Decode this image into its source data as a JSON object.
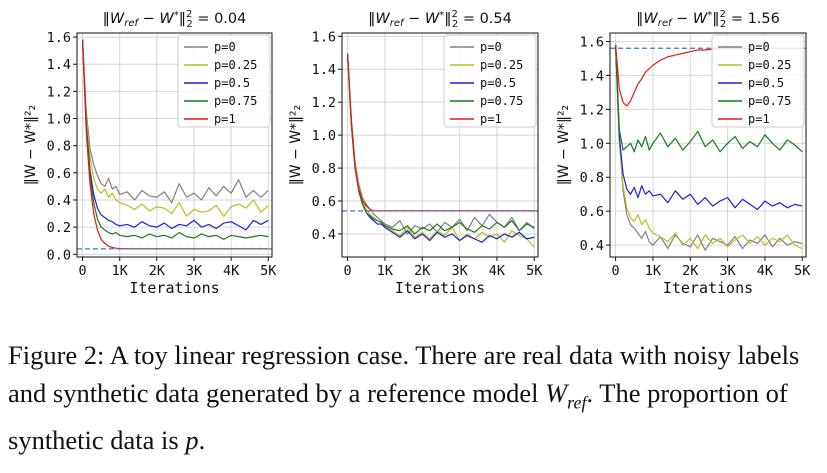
{
  "chart_data": [
    {
      "type": "line",
      "title": "‖W_ref − W*‖²₂ = 0.04",
      "title_parts": {
        "norm": "‖W",
        "sub": "ref",
        "mid": " − W",
        "sup": "*",
        "close": "‖",
        "pow": "2",
        "powsub": "2",
        "value": " = 0.04"
      },
      "xlabel": "Iterations",
      "ylabel": "‖W − W*‖²₂",
      "xlim": [
        -150,
        5100
      ],
      "ylim": [
        -0.02,
        1.63
      ],
      "xticks": [
        0,
        1000,
        2000,
        3000,
        4000,
        5000
      ],
      "xtick_labels": [
        "0",
        "1K",
        "2K",
        "3K",
        "4K",
        "5K"
      ],
      "yticks": [
        0.0,
        0.2,
        0.4,
        0.6,
        0.8,
        1.0,
        1.2,
        1.4,
        1.6
      ],
      "ytick_labels": [
        "0.0",
        "0.2",
        "0.4",
        "0.6",
        "0.8",
        "1.0",
        "1.2",
        "1.4",
        "1.6"
      ],
      "hline": 0.04,
      "grid": true,
      "legend": "top-right",
      "x": [
        0,
        100,
        200,
        300,
        400,
        500,
        600,
        700,
        800,
        900,
        1000,
        1200,
        1400,
        1600,
        1800,
        2000,
        2200,
        2400,
        2600,
        2800,
        3000,
        3200,
        3400,
        3600,
        3800,
        4000,
        4200,
        4400,
        4600,
        4800,
        5000
      ],
      "series": [
        {
          "name": "p=0",
          "color": "#808080",
          "values": [
            1.58,
            1.05,
            0.78,
            0.66,
            0.58,
            0.52,
            0.5,
            0.56,
            0.48,
            0.5,
            0.44,
            0.46,
            0.4,
            0.47,
            0.43,
            0.42,
            0.46,
            0.38,
            0.52,
            0.42,
            0.45,
            0.4,
            0.49,
            0.43,
            0.5,
            0.45,
            0.55,
            0.42,
            0.47,
            0.42,
            0.47
          ]
        },
        {
          "name": "p=0.25",
          "color": "#bcbd22",
          "values": [
            1.58,
            1.0,
            0.72,
            0.56,
            0.48,
            0.45,
            0.48,
            0.42,
            0.45,
            0.4,
            0.38,
            0.36,
            0.33,
            0.37,
            0.32,
            0.35,
            0.34,
            0.3,
            0.38,
            0.28,
            0.33,
            0.31,
            0.32,
            0.36,
            0.28,
            0.35,
            0.37,
            0.34,
            0.4,
            0.31,
            0.36
          ]
        },
        {
          "name": "p=0.5",
          "color": "#1f1fd4",
          "values": [
            1.58,
            0.95,
            0.62,
            0.44,
            0.34,
            0.29,
            0.27,
            0.25,
            0.24,
            0.22,
            0.21,
            0.22,
            0.2,
            0.24,
            0.21,
            0.2,
            0.23,
            0.19,
            0.22,
            0.21,
            0.25,
            0.2,
            0.22,
            0.19,
            0.23,
            0.24,
            0.21,
            0.18,
            0.25,
            0.22,
            0.25
          ]
        },
        {
          "name": "p=0.75",
          "color": "#1a7a1a",
          "values": [
            1.58,
            0.93,
            0.58,
            0.38,
            0.26,
            0.2,
            0.18,
            0.16,
            0.15,
            0.16,
            0.14,
            0.13,
            0.14,
            0.12,
            0.15,
            0.13,
            0.14,
            0.12,
            0.16,
            0.13,
            0.12,
            0.15,
            0.13,
            0.14,
            0.11,
            0.14,
            0.13,
            0.12,
            0.13,
            0.14,
            0.13
          ]
        },
        {
          "name": "p=1",
          "color": "#e61919",
          "values": [
            1.58,
            0.9,
            0.52,
            0.3,
            0.18,
            0.11,
            0.08,
            0.06,
            0.05,
            0.045,
            0.042,
            0.04,
            0.04,
            0.04,
            0.04,
            0.04,
            0.04,
            0.04,
            0.04,
            0.04,
            0.04,
            0.04,
            0.04,
            0.04,
            0.04,
            0.04,
            0.04,
            0.04,
            0.04,
            0.04,
            0.04
          ]
        }
      ]
    },
    {
      "type": "line",
      "title": "‖W_ref − W*‖²₂ = 0.54",
      "title_parts": {
        "norm": "‖W",
        "sub": "ref",
        "mid": " − W",
        "sup": "*",
        "close": "‖",
        "pow": "2",
        "powsub": "2",
        "value": " = 0.54"
      },
      "xlabel": "Iterations",
      "ylabel": "‖W − W*‖²₂",
      "xlim": [
        -150,
        5100
      ],
      "ylim": [
        0.26,
        1.62
      ],
      "xticks": [
        0,
        1000,
        2000,
        3000,
        4000,
        5000
      ],
      "xtick_labels": [
        "0",
        "1K",
        "2K",
        "3K",
        "4K",
        "5K"
      ],
      "yticks": [
        0.4,
        0.6,
        0.8,
        1.0,
        1.2,
        1.4,
        1.6
      ],
      "ytick_labels": [
        "0.4",
        "0.6",
        "0.8",
        "1.0",
        "1.2",
        "1.4",
        "1.6"
      ],
      "hline": 0.54,
      "grid": true,
      "legend": "top-right",
      "x": [
        0,
        100,
        200,
        300,
        400,
        500,
        600,
        700,
        800,
        900,
        1000,
        1200,
        1400,
        1600,
        1800,
        2000,
        2200,
        2400,
        2600,
        2800,
        3000,
        3200,
        3400,
        3600,
        3800,
        4000,
        4200,
        4400,
        4600,
        4800,
        5000
      ],
      "series": [
        {
          "name": "p=0",
          "color": "#808080",
          "values": [
            1.5,
            1.1,
            0.84,
            0.7,
            0.62,
            0.58,
            0.55,
            0.52,
            0.5,
            0.48,
            0.46,
            0.44,
            0.48,
            0.4,
            0.45,
            0.43,
            0.46,
            0.41,
            0.47,
            0.44,
            0.49,
            0.42,
            0.5,
            0.45,
            0.52,
            0.47,
            0.44,
            0.5,
            0.42,
            0.47,
            0.43
          ]
        },
        {
          "name": "p=0.25",
          "color": "#bcbd22",
          "values": [
            1.49,
            1.08,
            0.82,
            0.68,
            0.6,
            0.55,
            0.52,
            0.5,
            0.48,
            0.47,
            0.45,
            0.42,
            0.39,
            0.44,
            0.38,
            0.41,
            0.37,
            0.42,
            0.39,
            0.44,
            0.36,
            0.4,
            0.37,
            0.41,
            0.38,
            0.4,
            0.35,
            0.42,
            0.39,
            0.37,
            0.32
          ]
        },
        {
          "name": "p=0.5",
          "color": "#1f1fd4",
          "values": [
            1.49,
            1.08,
            0.8,
            0.66,
            0.58,
            0.53,
            0.5,
            0.48,
            0.46,
            0.46,
            0.44,
            0.41,
            0.38,
            0.42,
            0.37,
            0.4,
            0.36,
            0.41,
            0.38,
            0.4,
            0.36,
            0.39,
            0.37,
            0.35,
            0.39,
            0.37,
            0.4,
            0.38,
            0.41,
            0.37,
            0.38
          ]
        },
        {
          "name": "p=0.75",
          "color": "#1a7a1a",
          "values": [
            1.49,
            1.07,
            0.8,
            0.66,
            0.58,
            0.53,
            0.51,
            0.49,
            0.48,
            0.47,
            0.45,
            0.43,
            0.42,
            0.45,
            0.4,
            0.44,
            0.42,
            0.46,
            0.42,
            0.44,
            0.47,
            0.43,
            0.41,
            0.45,
            0.43,
            0.47,
            0.44,
            0.48,
            0.42,
            0.46,
            0.44
          ]
        },
        {
          "name": "p=1",
          "color": "#e61919",
          "values": [
            1.49,
            1.06,
            0.8,
            0.67,
            0.6,
            0.57,
            0.55,
            0.54,
            0.54,
            0.54,
            0.54,
            0.54,
            0.54,
            0.54,
            0.54,
            0.54,
            0.54,
            0.54,
            0.54,
            0.54,
            0.54,
            0.54,
            0.54,
            0.54,
            0.54,
            0.54,
            0.54,
            0.54,
            0.54,
            0.54,
            0.54
          ]
        }
      ]
    },
    {
      "type": "line",
      "title": "‖W_ref − W*‖²₂ = 1.56",
      "title_parts": {
        "norm": "‖W",
        "sub": "ref",
        "mid": " − W",
        "sup": "*",
        "close": "‖",
        "pow": "2",
        "powsub": "2",
        "value": " = 1.56"
      },
      "xlabel": "Iterations",
      "ylabel": "‖W − W*‖²₂",
      "xlim": [
        -150,
        5100
      ],
      "ylim": [
        0.33,
        1.65
      ],
      "xticks": [
        0,
        1000,
        2000,
        3000,
        4000,
        5000
      ],
      "xtick_labels": [
        "0",
        "1K",
        "2K",
        "3K",
        "4K",
        "5K"
      ],
      "yticks": [
        0.4,
        0.6,
        0.8,
        1.0,
        1.2,
        1.4,
        1.6
      ],
      "ytick_labels": [
        "0.4",
        "0.6",
        "0.8",
        "1.0",
        "1.2",
        "1.4",
        "1.6"
      ],
      "hline": 1.56,
      "grid": true,
      "legend": "top-right",
      "x": [
        0,
        100,
        200,
        300,
        400,
        500,
        600,
        700,
        800,
        900,
        1000,
        1200,
        1400,
        1600,
        1800,
        2000,
        2200,
        2400,
        2600,
        2800,
        3000,
        3200,
        3400,
        3600,
        3800,
        4000,
        4200,
        4400,
        4600,
        4800,
        5000
      ],
      "series": [
        {
          "name": "p=0",
          "color": "#808080",
          "values": [
            1.58,
            1.02,
            0.72,
            0.58,
            0.52,
            0.5,
            0.47,
            0.44,
            0.48,
            0.42,
            0.4,
            0.45,
            0.38,
            0.46,
            0.41,
            0.39,
            0.46,
            0.37,
            0.44,
            0.42,
            0.4,
            0.45,
            0.38,
            0.43,
            0.41,
            0.46,
            0.39,
            0.44,
            0.4,
            0.42,
            0.41
          ]
        },
        {
          "name": "p=0.25",
          "color": "#bcbd22",
          "values": [
            1.58,
            1.02,
            0.75,
            0.62,
            0.56,
            0.54,
            0.58,
            0.52,
            0.55,
            0.5,
            0.47,
            0.45,
            0.42,
            0.47,
            0.4,
            0.44,
            0.38,
            0.46,
            0.41,
            0.44,
            0.39,
            0.43,
            0.46,
            0.41,
            0.45,
            0.4,
            0.44,
            0.42,
            0.46,
            0.4,
            0.38
          ]
        },
        {
          "name": "p=0.5",
          "color": "#1f1fd4",
          "values": [
            1.58,
            1.04,
            0.82,
            0.73,
            0.7,
            0.74,
            0.68,
            0.75,
            0.7,
            0.72,
            0.69,
            0.7,
            0.65,
            0.72,
            0.67,
            0.7,
            0.64,
            0.68,
            0.63,
            0.66,
            0.68,
            0.62,
            0.67,
            0.64,
            0.61,
            0.66,
            0.63,
            0.65,
            0.62,
            0.64,
            0.63
          ]
        },
        {
          "name": "p=0.75",
          "color": "#1a7a1a",
          "values": [
            1.58,
            1.08,
            0.96,
            0.98,
            1.0,
            0.95,
            1.02,
            0.98,
            1.04,
            0.96,
            1.0,
            1.06,
            0.98,
            1.03,
            0.96,
            1.01,
            1.07,
            0.98,
            1.02,
            0.95,
            1.0,
            1.04,
            0.97,
            1.01,
            0.98,
            1.05,
            1.0,
            0.96,
            1.02,
            0.99,
            0.95
          ]
        },
        {
          "name": "p=1",
          "color": "#e61919",
          "values": [
            1.58,
            1.32,
            1.24,
            1.22,
            1.25,
            1.3,
            1.35,
            1.38,
            1.42,
            1.44,
            1.46,
            1.49,
            1.51,
            1.52,
            1.53,
            1.54,
            1.55,
            1.55,
            1.555,
            1.56,
            1.56,
            1.56,
            1.56,
            1.56,
            1.56,
            1.56,
            1.56,
            1.56,
            1.56,
            1.56,
            1.56
          ]
        }
      ]
    }
  ],
  "caption": {
    "text1": "Figure 2: A toy linear regression case. There are real data with noisy labels and synthetic data generated by a reference model ",
    "math1": "W",
    "math1_sub": "ref",
    "text2": ". The proportion of synthetic data is ",
    "math2": "p",
    "text3": "."
  },
  "colors": {
    "hline": "#3a7bbf",
    "grid": "#d6d6d6",
    "axis": "#111111",
    "background": "#ffffff"
  }
}
